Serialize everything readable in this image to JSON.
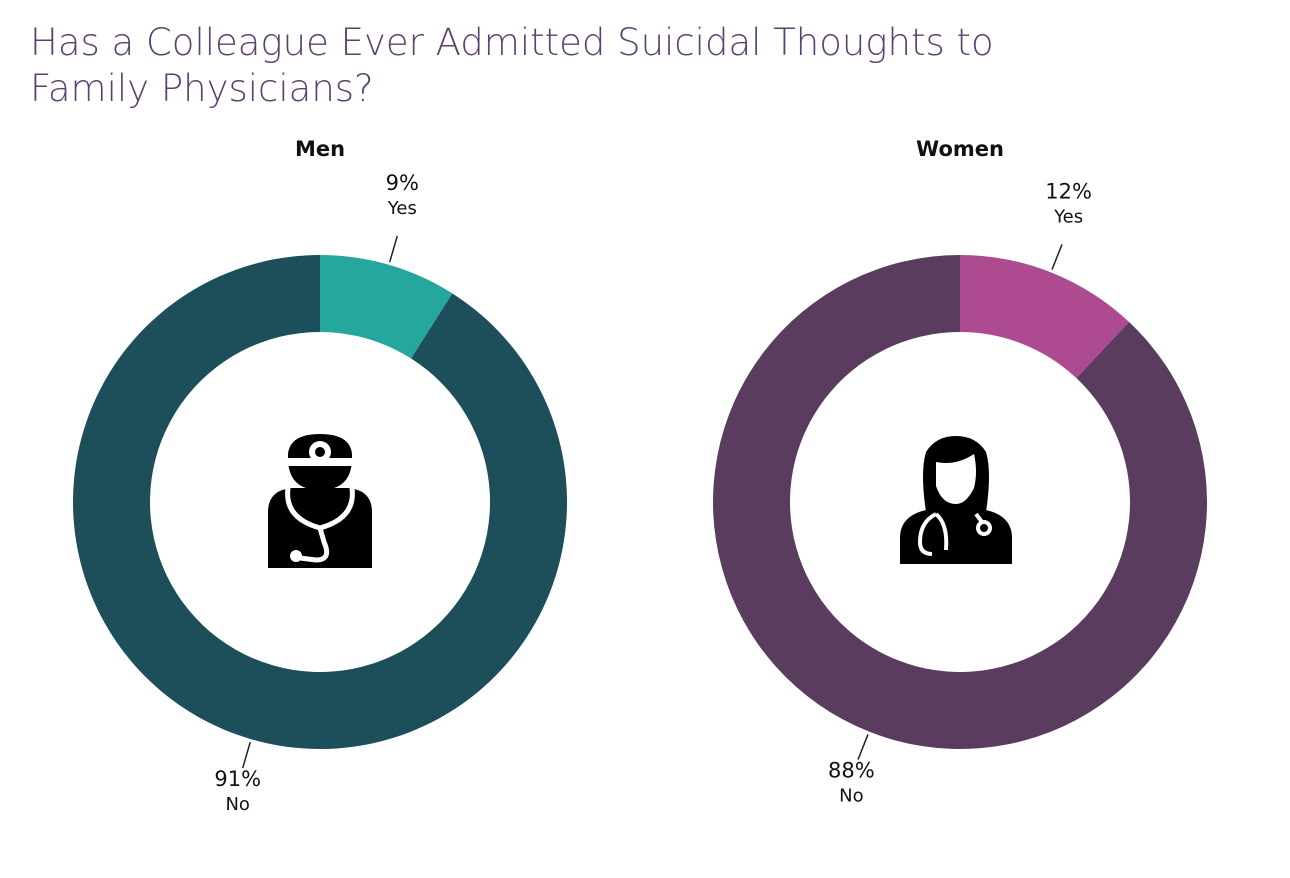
{
  "title": "Has a Colleague Ever Admitted Suicidal Thoughts to Family Physicians?",
  "chart_data": [
    {
      "type": "donut",
      "title": "Men",
      "categories": [
        "Yes",
        "No"
      ],
      "values": [
        9,
        91
      ],
      "value_labels": [
        "9%",
        "91%"
      ],
      "colors": [
        "#26a79d",
        "#1c4f5a"
      ]
    },
    {
      "type": "donut",
      "title": "Women",
      "categories": [
        "Yes",
        "No"
      ],
      "values": [
        12,
        88
      ],
      "value_labels": [
        "12%",
        "88%"
      ],
      "colors": [
        "#ad4a90",
        "#5a3c5e"
      ]
    }
  ]
}
